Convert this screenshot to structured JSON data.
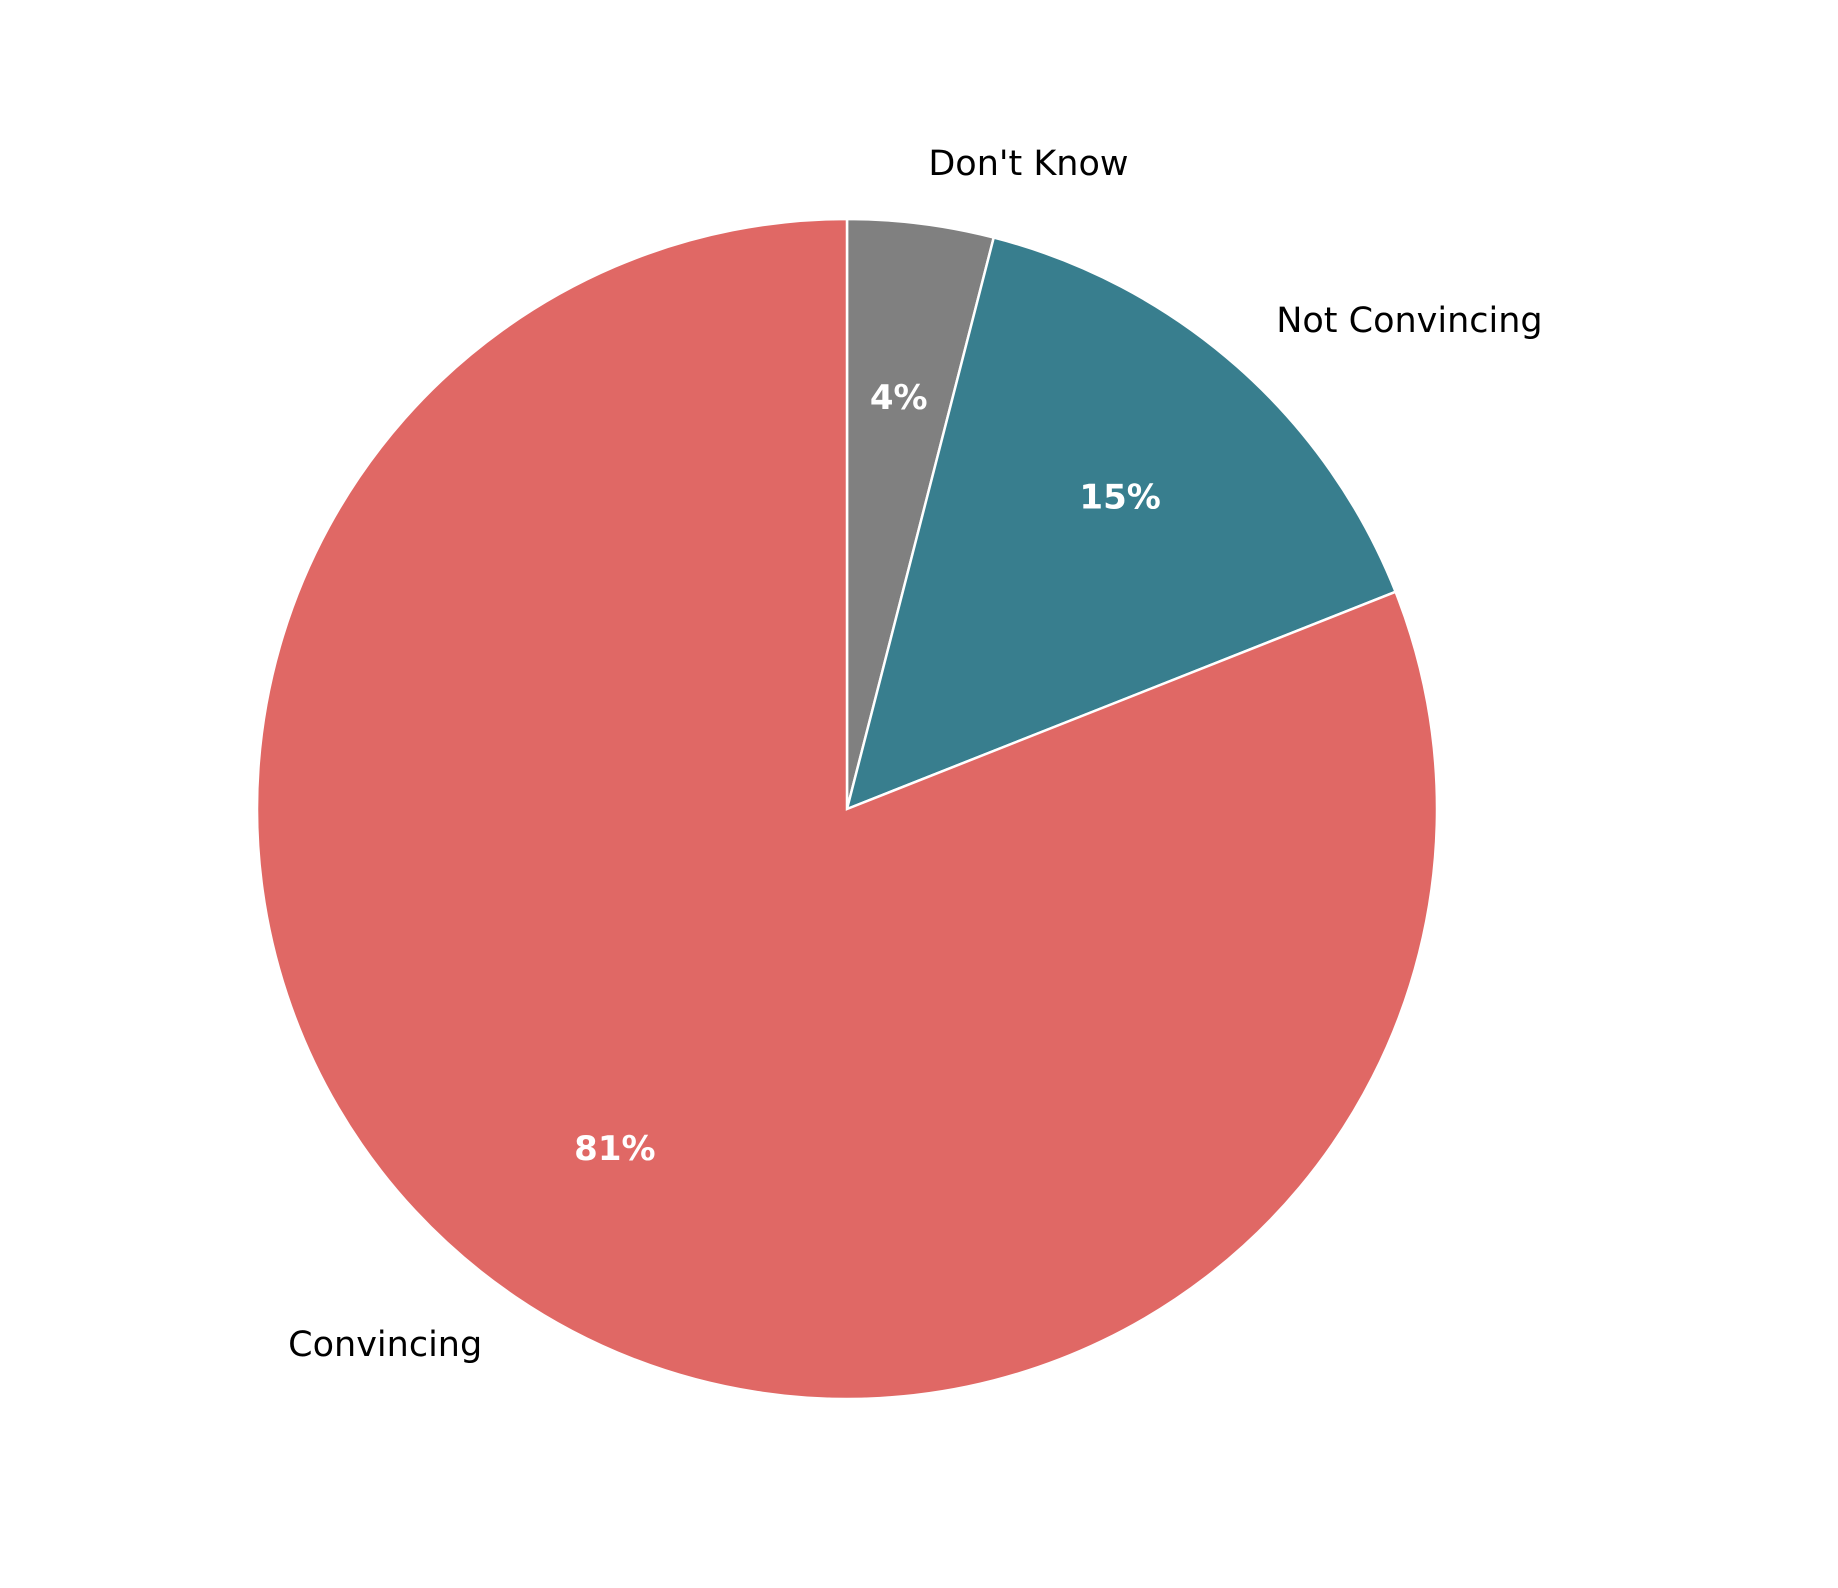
{
  "chart_data": {
    "type": "pie",
    "categories": [
      "Don't Know",
      "Not Convincing",
      "Convincing"
    ],
    "values": [
      4,
      15,
      81
    ],
    "value_labels": [
      "4%",
      "15%",
      "81%"
    ],
    "colors": [
      "#808080",
      "#387e8e",
      "#e06865"
    ],
    "start_angle": 90,
    "clockwise": true
  }
}
